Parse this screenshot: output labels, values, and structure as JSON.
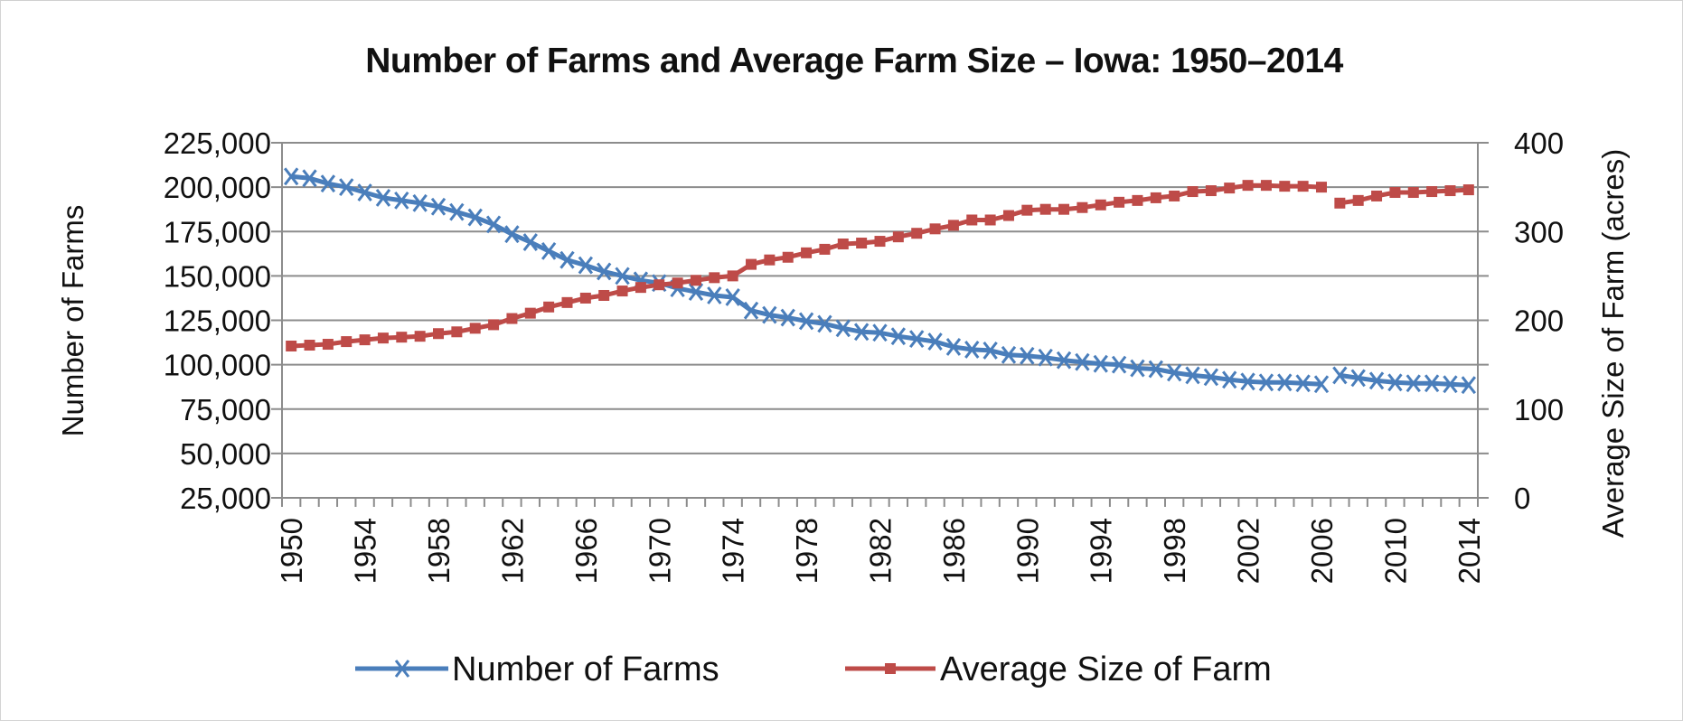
{
  "chart_data": {
    "type": "line",
    "title": "Number of Farms and Average Farm Size – Iowa:  1950–2014",
    "xlabel": "",
    "ylabel": "Number of Farms",
    "y2label": "Average Size of Farm (acres)",
    "grid": true,
    "legend_position": "bottom",
    "x": [
      1950,
      1951,
      1952,
      1953,
      1954,
      1955,
      1956,
      1957,
      1958,
      1959,
      1960,
      1961,
      1962,
      1963,
      1964,
      1965,
      1966,
      1967,
      1968,
      1969,
      1970,
      1971,
      1972,
      1973,
      1974,
      1975,
      1976,
      1977,
      1978,
      1979,
      1980,
      1981,
      1982,
      1983,
      1984,
      1985,
      1986,
      1987,
      1988,
      1989,
      1990,
      1991,
      1992,
      1993,
      1994,
      1995,
      1996,
      1997,
      1998,
      1999,
      2000,
      2001,
      2002,
      2003,
      2004,
      2005,
      2006,
      2007,
      2008,
      2009,
      2010,
      2011,
      2012,
      2013,
      2014
    ],
    "x_tick_labels": [
      "1950",
      "1954",
      "1958",
      "1962",
      "1966",
      "1970",
      "1974",
      "1978",
      "1982",
      "1986",
      "1990",
      "1994",
      "1998",
      "2002",
      "2006",
      "2010",
      "2014"
    ],
    "y_ticks": [
      "25,000",
      "50,000",
      "75,000",
      "100,000",
      "125,000",
      "150,000",
      "175,000",
      "200,000",
      "225,000"
    ],
    "y_values": [
      25000,
      50000,
      75000,
      100000,
      125000,
      150000,
      175000,
      200000,
      225000
    ],
    "ylim": [
      25000,
      225000
    ],
    "y2_ticks": [
      "0",
      "100",
      "200",
      "300",
      "400"
    ],
    "y2_values": [
      0,
      100,
      200,
      300,
      400
    ],
    "y2lim": [
      0,
      400
    ],
    "series_break_after": 2006,
    "series": [
      {
        "name": "Number of Farms",
        "axis": "left",
        "color": "#4a7ebb",
        "marker": "x",
        "values": [
          206000,
          205000,
          202000,
          200000,
          197000,
          194000,
          192500,
          191000,
          189000,
          186000,
          183000,
          179000,
          173500,
          169000,
          164000,
          159000,
          156000,
          152500,
          150000,
          147500,
          146000,
          143000,
          141000,
          139000,
          138000,
          130500,
          128000,
          126500,
          124500,
          123000,
          120500,
          118500,
          118000,
          116000,
          114500,
          113000,
          110000,
          108500,
          108000,
          105500,
          105000,
          104000,
          102500,
          101500,
          100500,
          100000,
          98000,
          97500,
          95500,
          94000,
          93000,
          91500,
          90500,
          90000,
          90000,
          89500,
          89000,
          94000,
          92500,
          91000,
          90000,
          89500,
          89500,
          89000,
          88500
        ]
      },
      {
        "name": "Average Size of Farm",
        "axis": "right",
        "color": "#be4b48",
        "marker": "square",
        "values": [
          171,
          172,
          173,
          176,
          178,
          180,
          181,
          182,
          185,
          187,
          191,
          195,
          202,
          208,
          215,
          220,
          225,
          228,
          233,
          237,
          240,
          242,
          245,
          248,
          250,
          263,
          268,
          271,
          276,
          280,
          286,
          287,
          289,
          294,
          298,
          303,
          307,
          313,
          313,
          318,
          324,
          325,
          325,
          327,
          330,
          333,
          335,
          338,
          340,
          345,
          346,
          349,
          352,
          352,
          351,
          351,
          350,
          332,
          335,
          340,
          344,
          344,
          345,
          346,
          347
        ]
      }
    ]
  }
}
